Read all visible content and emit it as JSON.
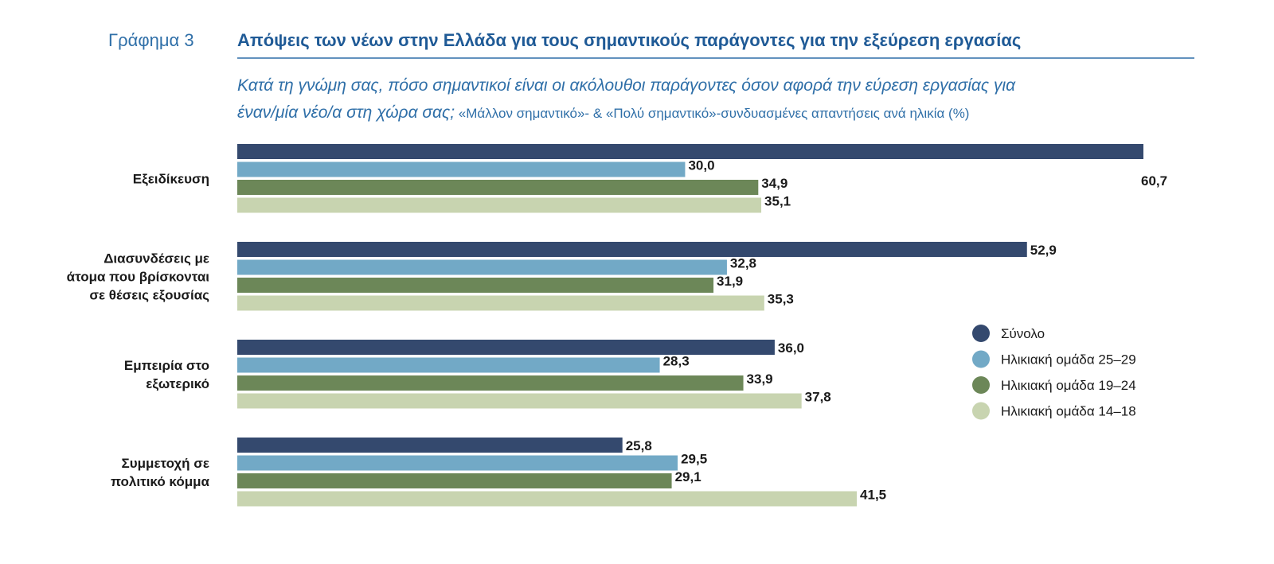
{
  "header": {
    "figure_label": "Γράφημα 3",
    "title": "Απόψεις των νέων στην Ελλάδα για τους σημαντικούς παράγοντες για την εξεύρεση εργασίας",
    "subtitle_line1": "Κατά τη γνώμη σας, πόσο σημαντικοί είναι οι ακόλουθοι παράγοντες όσον αφορά την εύρεση εργασίας για",
    "subtitle_line2_italic": "έναν/μία νέο/α στη χώρα σας;",
    "subtitle_line2_normal": " «Μάλλον σημαντικό»- & «Πολύ σημαντικό»-συνδυασμένες απαντήσεις ανά ηλικία (%)"
  },
  "chart_data": {
    "type": "bar",
    "orientation": "horizontal",
    "title": "Απόψεις των νέων στην Ελλάδα για τους σημαντικούς παράγοντες για την εξεύρεση εργασίας",
    "categories": [
      [
        "Εξειδίκευση"
      ],
      [
        "Διασυνδέσεις με",
        "άτομα που βρίσκονται",
        "σε θέσεις εξουσίας"
      ],
      [
        "Εμπειρία στο",
        "εξωτερικό"
      ],
      [
        "Συμμετοχή σε",
        "πολιτικό κόμμα"
      ]
    ],
    "series": [
      {
        "name": "Σύνολο",
        "color": "#34496e",
        "values": [
          60.7,
          52.9,
          36.0,
          25.8
        ],
        "labels": [
          "60,7",
          "52,9",
          "36,0",
          "25,8"
        ]
      },
      {
        "name": "Ηλικιακή ομάδα 25–29",
        "color": "#72a9c6",
        "values": [
          30.0,
          32.8,
          28.3,
          29.5
        ],
        "labels": [
          "30,0",
          "32,8",
          "28,3",
          "29,5"
        ]
      },
      {
        "name": "Ηλικιακή ομάδα 19–24",
        "color": "#6c8758",
        "values": [
          34.9,
          31.9,
          33.9,
          29.1
        ],
        "labels": [
          "34,9",
          "31,9",
          "33,9",
          "29,1"
        ]
      },
      {
        "name": "Ηλικιακή ομάδα 14–18",
        "color": "#c8d4b0",
        "values": [
          35.1,
          35.3,
          37.8,
          41.5
        ],
        "labels": [
          "35,1",
          "35,3",
          "37,8",
          "41,5"
        ]
      }
    ],
    "xlim": [
      0,
      60.7
    ],
    "grid": false,
    "legend_position": "right"
  }
}
